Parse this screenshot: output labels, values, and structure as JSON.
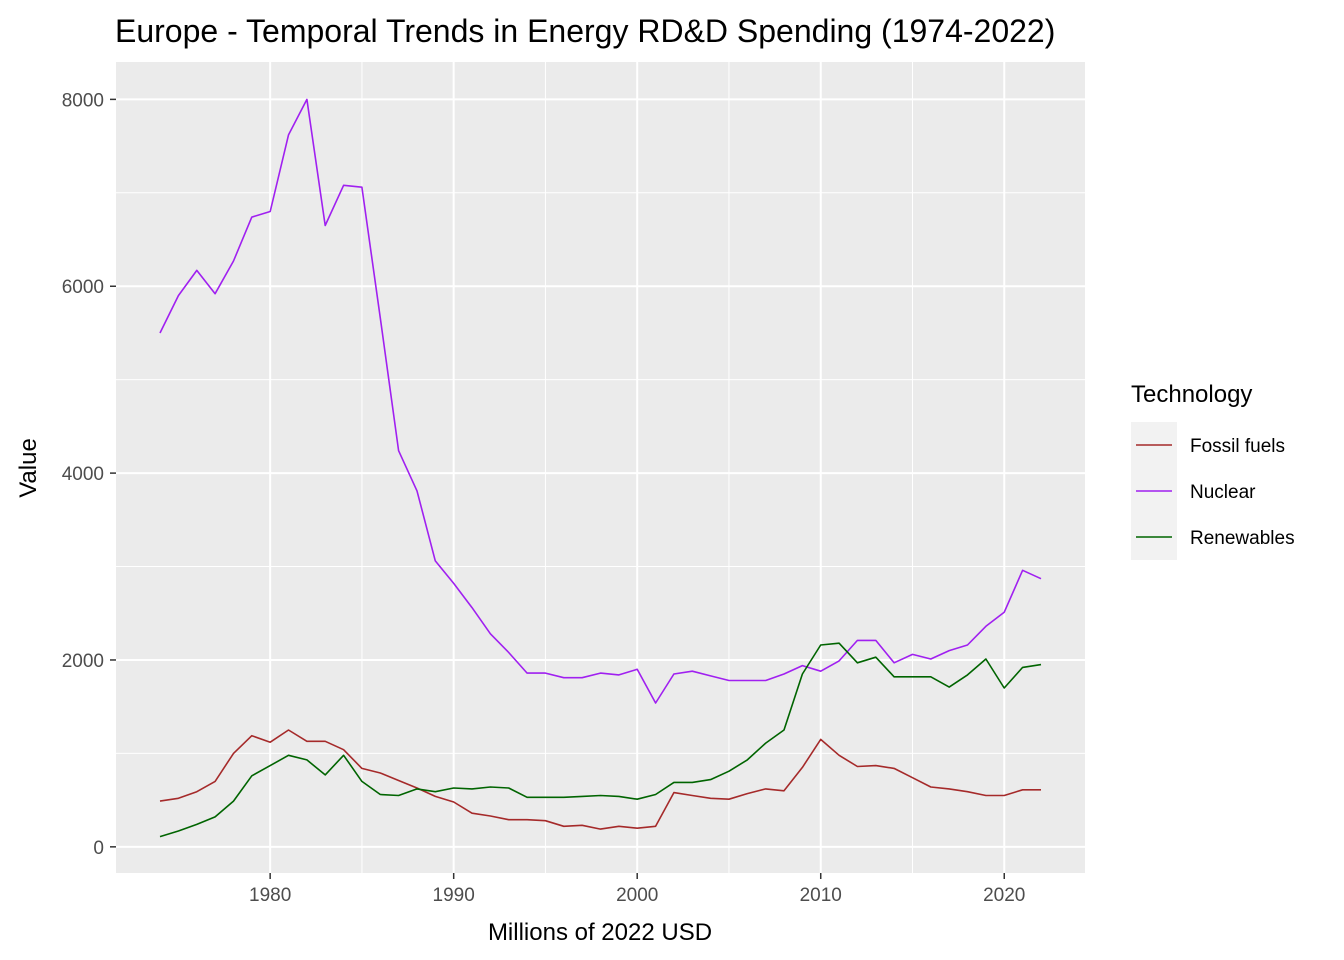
{
  "chart_data": {
    "type": "line",
    "title": "Europe - Temporal Trends in Energy RD&D Spending (1974-2022)",
    "xlabel": "Millions of 2022 USD",
    "ylabel": "Value",
    "xlim": [
      1971.6,
      2024.4
    ],
    "ylim": [
      -280,
      8400
    ],
    "x_ticks": [
      1980,
      1990,
      2000,
      2010,
      2020
    ],
    "x_tick_labels": [
      "1980",
      "1990",
      "2000",
      "2010",
      "2020"
    ],
    "y_ticks": [
      0,
      2000,
      4000,
      6000,
      8000
    ],
    "y_tick_labels": [
      "0",
      "2000",
      "4000",
      "6000",
      "8000"
    ],
    "grid": true,
    "background": "#ebebeb",
    "legend": {
      "title": "Technology",
      "placement": "right"
    },
    "x": [
      1974,
      1975,
      1976,
      1977,
      1978,
      1979,
      1980,
      1981,
      1982,
      1983,
      1984,
      1985,
      1986,
      1987,
      1988,
      1989,
      1990,
      1991,
      1992,
      1993,
      1994,
      1995,
      1996,
      1997,
      1998,
      1999,
      2000,
      2001,
      2002,
      2003,
      2004,
      2005,
      2006,
      2007,
      2008,
      2009,
      2010,
      2011,
      2012,
      2013,
      2014,
      2015,
      2016,
      2017,
      2018,
      2019,
      2020,
      2021,
      2022
    ],
    "series": [
      {
        "name": "Fossil fuels",
        "color": "#a52a2a",
        "values": [
          490,
          520,
          590,
          700,
          1000,
          1190,
          1120,
          1250,
          1130,
          1130,
          1040,
          840,
          790,
          710,
          630,
          540,
          480,
          360,
          330,
          290,
          290,
          280,
          220,
          230,
          190,
          220,
          200,
          220,
          580,
          550,
          520,
          510,
          570,
          620,
          600,
          850,
          1150,
          980,
          860,
          870,
          840,
          740,
          640,
          620,
          590,
          550,
          550,
          610,
          610
        ]
      },
      {
        "name": "Nuclear",
        "color": "#a020f0",
        "values": [
          5500,
          5900,
          6170,
          5920,
          6270,
          6740,
          6800,
          7620,
          8000,
          6650,
          7080,
          7060,
          5660,
          4240,
          3810,
          3060,
          2820,
          2560,
          2280,
          2080,
          1860,
          1860,
          1810,
          1810,
          1860,
          1840,
          1900,
          1540,
          1850,
          1880,
          1830,
          1780,
          1780,
          1780,
          1850,
          1940,
          1880,
          1990,
          2210,
          2210,
          1970,
          2060,
          2010,
          2100,
          2160,
          2360,
          2510,
          2960,
          2870
        ]
      },
      {
        "name": "Renewables",
        "color": "#006400",
        "values": [
          110,
          170,
          240,
          320,
          490,
          760,
          870,
          980,
          930,
          770,
          980,
          700,
          560,
          550,
          620,
          590,
          630,
          620,
          640,
          630,
          530,
          530,
          530,
          540,
          550,
          540,
          510,
          560,
          690,
          690,
          720,
          810,
          930,
          1110,
          1250,
          1850,
          2160,
          2180,
          1970,
          2030,
          1820,
          1820,
          1820,
          1710,
          1840,
          2010,
          1700,
          1920,
          1950
        ]
      }
    ]
  }
}
